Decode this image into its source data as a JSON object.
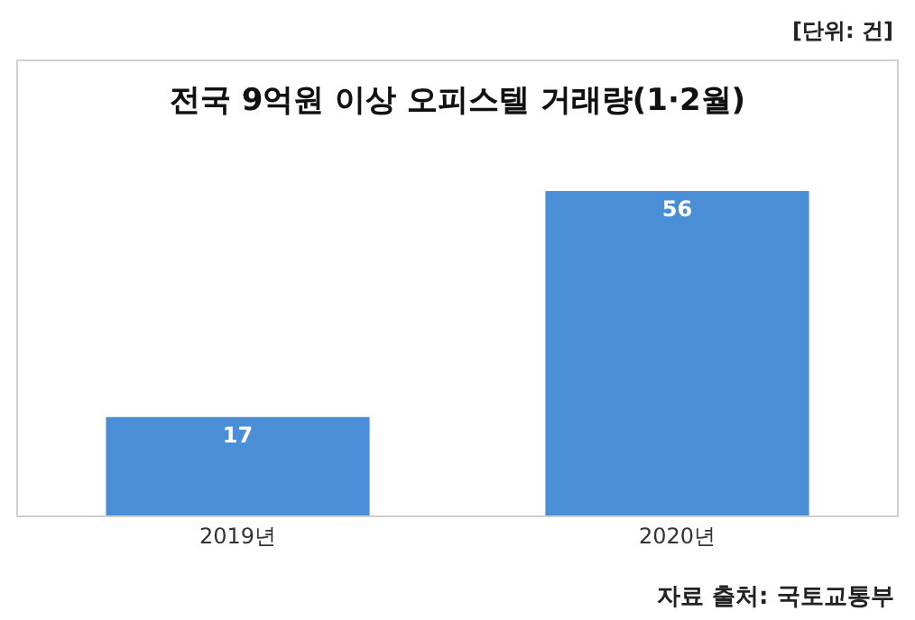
{
  "chart_data": {
    "type": "bar",
    "title": "전국 9억원 이상 오피스텔 거래량(1·2월)",
    "categories": [
      "2019년",
      "2020년"
    ],
    "values": [
      17,
      56
    ],
    "color": "#4a8fd6",
    "data_labels": true,
    "legend": false,
    "annotations": [
      "[단위: 건]",
      "자료 출처: 국토교통부"
    ]
  }
}
